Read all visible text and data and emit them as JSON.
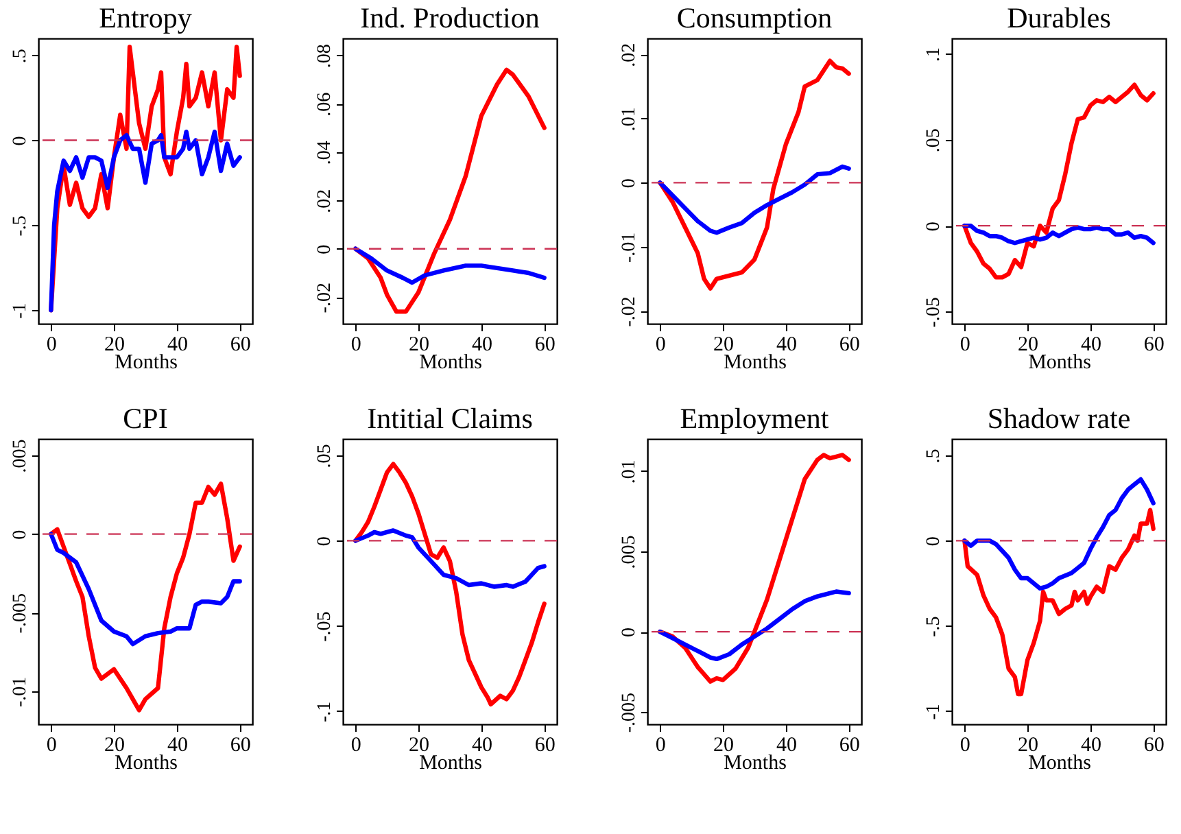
{
  "chart_data": [
    {
      "type": "line",
      "title": "Entropy",
      "xlabel": "Months",
      "xlim": [
        -4,
        64
      ],
      "xticks": [
        0,
        20,
        40,
        60
      ],
      "ylim": [
        -1.08,
        0.6
      ],
      "yticks": [
        {
          "value": -1,
          "label": "-1"
        },
        {
          "value": -0.5,
          "label": "-.5"
        },
        {
          "value": 0,
          "label": "0"
        },
        {
          "value": 0.5,
          "label": ".5"
        }
      ],
      "grid": false,
      "marker": "none",
      "line_style": "solid",
      "ref_lines": [
        {
          "axis": "y",
          "value": 0,
          "color": "#cc3355",
          "line_style": "dashed"
        }
      ],
      "series": [
        {
          "color": "#ff0000",
          "x": [
            0,
            2,
            4,
            6,
            8,
            10,
            12,
            14,
            16,
            18,
            20,
            22,
            24,
            25,
            26,
            28,
            30,
            32,
            34,
            35,
            36,
            38,
            40,
            42,
            43,
            44,
            46,
            48,
            50,
            52,
            54,
            56,
            58,
            59,
            60
          ],
          "values": [
            -1,
            -0.4,
            -0.15,
            -0.38,
            -0.25,
            -0.4,
            -0.45,
            -0.4,
            -0.2,
            -0.4,
            -0.1,
            0.15,
            -0.05,
            0.55,
            0.4,
            0.1,
            -0.05,
            0.2,
            0.3,
            0.4,
            -0.1,
            -0.2,
            0.05,
            0.25,
            0.45,
            0.2,
            0.25,
            0.4,
            0.2,
            0.4,
            0.0,
            0.3,
            0.25,
            0.55,
            0.38
          ]
        },
        {
          "color": "#0000ff",
          "x": [
            0,
            1,
            2,
            4,
            6,
            8,
            10,
            12,
            14,
            16,
            18,
            20,
            22,
            24,
            26,
            28,
            30,
            32,
            34,
            35,
            36,
            38,
            40,
            42,
            43,
            44,
            46,
            48,
            50,
            52,
            54,
            56,
            58,
            60
          ],
          "values": [
            -1,
            -0.5,
            -0.3,
            -0.12,
            -0.18,
            -0.1,
            -0.22,
            -0.1,
            -0.1,
            -0.12,
            -0.28,
            -0.1,
            0.0,
            0.03,
            -0.05,
            -0.05,
            -0.25,
            -0.02,
            0.0,
            0.03,
            -0.1,
            -0.1,
            -0.1,
            -0.05,
            0.05,
            -0.05,
            0.0,
            -0.2,
            -0.1,
            0.05,
            -0.18,
            -0.02,
            -0.15,
            -0.1
          ]
        }
      ]
    },
    {
      "type": "line",
      "title": "Ind. Production",
      "xlabel": "Months",
      "xlim": [
        -4,
        64
      ],
      "xticks": [
        0,
        20,
        40,
        60
      ],
      "ylim": [
        -0.031,
        0.087
      ],
      "yticks": [
        {
          "value": -0.02,
          "label": "-.02"
        },
        {
          "value": 0,
          "label": "0"
        },
        {
          "value": 0.02,
          "label": ".02"
        },
        {
          "value": 0.04,
          "label": ".04"
        },
        {
          "value": 0.06,
          "label": ".06"
        },
        {
          "value": 0.08,
          "label": ".08"
        }
      ],
      "grid": false,
      "marker": "none",
      "line_style": "solid",
      "ref_lines": [
        {
          "axis": "y",
          "value": 0,
          "color": "#cc3355",
          "line_style": "dashed"
        }
      ],
      "series": [
        {
          "color": "#ff0000",
          "x": [
            0,
            4,
            8,
            10,
            13,
            16,
            20,
            25,
            30,
            35,
            40,
            45,
            48,
            50,
            55,
            60
          ],
          "values": [
            0,
            -0.004,
            -0.012,
            -0.019,
            -0.026,
            -0.026,
            -0.018,
            -0.002,
            0.012,
            0.03,
            0.055,
            0.068,
            0.074,
            0.072,
            0.063,
            0.05
          ]
        },
        {
          "color": "#0000ff",
          "x": [
            0,
            5,
            10,
            15,
            18,
            22,
            28,
            35,
            40,
            45,
            50,
            55,
            60
          ],
          "values": [
            0,
            -0.004,
            -0.009,
            -0.012,
            -0.014,
            -0.011,
            -0.009,
            -0.007,
            -0.007,
            -0.008,
            -0.009,
            -0.01,
            -0.012
          ]
        }
      ]
    },
    {
      "type": "line",
      "title": "Consumption",
      "xlabel": "Months",
      "xlim": [
        -4,
        64
      ],
      "xticks": [
        0,
        20,
        40,
        60
      ],
      "ylim": [
        -0.022,
        0.0225
      ],
      "yticks": [
        {
          "value": -0.02,
          "label": "-.02"
        },
        {
          "value": -0.01,
          "label": "-.01"
        },
        {
          "value": 0,
          "label": "0"
        },
        {
          "value": 0.01,
          "label": ".01"
        },
        {
          "value": 0.02,
          "label": ".02"
        }
      ],
      "grid": false,
      "marker": "none",
      "line_style": "solid",
      "ref_lines": [
        {
          "axis": "y",
          "value": 0,
          "color": "#cc3355",
          "line_style": "dashed"
        }
      ],
      "series": [
        {
          "color": "#ff0000",
          "x": [
            0,
            4,
            8,
            12,
            14,
            16,
            18,
            22,
            26,
            30,
            34,
            36,
            40,
            44,
            46,
            50,
            54,
            56,
            58,
            60
          ],
          "values": [
            0,
            -0.003,
            -0.007,
            -0.011,
            -0.015,
            -0.0165,
            -0.015,
            -0.0145,
            -0.014,
            -0.012,
            -0.007,
            -0.001,
            0.006,
            0.011,
            0.015,
            0.016,
            0.019,
            0.018,
            0.0178,
            0.017
          ]
        },
        {
          "color": "#0000ff",
          "x": [
            0,
            4,
            8,
            12,
            16,
            18,
            22,
            26,
            30,
            34,
            38,
            42,
            46,
            50,
            54,
            58,
            60
          ],
          "values": [
            0,
            -0.002,
            -0.004,
            -0.006,
            -0.0075,
            -0.0078,
            -0.007,
            -0.0063,
            -0.0047,
            -0.0035,
            -0.0025,
            -0.0015,
            -0.0003,
            0.0013,
            0.0015,
            0.0025,
            0.0022
          ]
        }
      ]
    },
    {
      "type": "line",
      "title": "Durables",
      "xlabel": "Months",
      "xlim": [
        -4,
        64
      ],
      "xticks": [
        0,
        20,
        40,
        60
      ],
      "ylim": [
        -0.057,
        0.109
      ],
      "yticks": [
        {
          "value": -0.05,
          "label": "-.05"
        },
        {
          "value": 0,
          "label": "0"
        },
        {
          "value": 0.05,
          "label": ".05"
        },
        {
          "value": 0.1,
          "label": ".1"
        }
      ],
      "grid": false,
      "marker": "none",
      "line_style": "solid",
      "ref_lines": [
        {
          "axis": "y",
          "value": 0,
          "color": "#cc3355",
          "line_style": "dashed"
        }
      ],
      "series": [
        {
          "color": "#ff0000",
          "x": [
            0,
            2,
            4,
            6,
            8,
            10,
            12,
            14,
            16,
            18,
            20,
            22,
            24,
            26,
            28,
            30,
            32,
            34,
            36,
            38,
            40,
            42,
            44,
            46,
            48,
            50,
            52,
            54,
            56,
            58,
            60
          ],
          "values": [
            0,
            -0.01,
            -0.015,
            -0.022,
            -0.025,
            -0.03,
            -0.03,
            -0.028,
            -0.02,
            -0.024,
            -0.01,
            -0.012,
            0.0,
            -0.004,
            0.01,
            0.015,
            0.03,
            0.048,
            0.062,
            0.063,
            0.07,
            0.073,
            0.072,
            0.075,
            0.072,
            0.075,
            0.078,
            0.082,
            0.076,
            0.073,
            0.077
          ]
        },
        {
          "color": "#0000ff",
          "x": [
            0,
            2,
            4,
            6,
            8,
            10,
            12,
            14,
            16,
            18,
            20,
            22,
            24,
            26,
            28,
            30,
            32,
            34,
            36,
            38,
            40,
            42,
            44,
            46,
            48,
            50,
            52,
            54,
            56,
            58,
            60
          ],
          "values": [
            0,
            0.0,
            -0.003,
            -0.004,
            -0.006,
            -0.006,
            -0.007,
            -0.009,
            -0.01,
            -0.009,
            -0.008,
            -0.007,
            -0.008,
            -0.007,
            -0.004,
            -0.006,
            -0.004,
            -0.002,
            -0.001,
            -0.002,
            -0.002,
            -0.001,
            -0.002,
            -0.002,
            -0.005,
            -0.005,
            -0.004,
            -0.007,
            -0.006,
            -0.007,
            -0.01
          ]
        }
      ]
    },
    {
      "type": "line",
      "title": "CPI",
      "xlabel": "Months",
      "xlim": [
        -4,
        64
      ],
      "xticks": [
        0,
        20,
        40,
        60
      ],
      "ylim": [
        -0.0121,
        0.00605
      ],
      "yticks": [
        {
          "value": -0.01,
          "label": "-.01"
        },
        {
          "value": -0.005,
          "label": "-.005"
        },
        {
          "value": 0,
          "label": "0"
        },
        {
          "value": 0.005,
          "label": ".005"
        }
      ],
      "grid": false,
      "marker": "none",
      "line_style": "solid",
      "ref_lines": [
        {
          "axis": "y",
          "value": 0,
          "color": "#cc3355",
          "line_style": "dashed"
        }
      ],
      "series": [
        {
          "color": "#ff0000",
          "x": [
            0,
            2,
            4,
            8,
            10,
            12,
            14,
            16,
            20,
            24,
            26,
            28,
            30,
            34,
            36,
            38,
            40,
            42,
            44,
            46,
            48,
            50,
            52,
            54,
            56,
            58,
            60
          ],
          "values": [
            0,
            0.0003,
            -0.0008,
            -0.003,
            -0.004,
            -0.0065,
            -0.0085,
            -0.0092,
            -0.0086,
            -0.0098,
            -0.0105,
            -0.0112,
            -0.0105,
            -0.0098,
            -0.006,
            -0.004,
            -0.0025,
            -0.0015,
            0.0,
            0.002,
            0.002,
            0.003,
            0.0025,
            0.0032,
            0.001,
            -0.0017,
            -0.0008
          ]
        },
        {
          "color": "#0000ff",
          "x": [
            0,
            2,
            4,
            8,
            12,
            16,
            20,
            24,
            26,
            30,
            34,
            38,
            40,
            44,
            46,
            48,
            50,
            54,
            56,
            58,
            60
          ],
          "values": [
            0,
            -0.001,
            -0.0012,
            -0.0018,
            -0.0035,
            -0.0055,
            -0.0062,
            -0.0065,
            -0.007,
            -0.0065,
            -0.0063,
            -0.0062,
            -0.006,
            -0.006,
            -0.0045,
            -0.0043,
            -0.0043,
            -0.0044,
            -0.004,
            -0.003,
            -0.003
          ]
        }
      ]
    },
    {
      "type": "line",
      "title": "Intitial Claims",
      "xlabel": "Months",
      "xlim": [
        -4,
        64
      ],
      "xticks": [
        0,
        20,
        40,
        60
      ],
      "ylim": [
        -0.1077,
        0.0597
      ],
      "yticks": [
        {
          "value": -0.1,
          "label": "-.1"
        },
        {
          "value": -0.05,
          "label": "-.05"
        },
        {
          "value": 0,
          "label": "0"
        },
        {
          "value": 0.05,
          "label": ".05"
        }
      ],
      "grid": false,
      "marker": "none",
      "line_style": "solid",
      "ref_lines": [
        {
          "axis": "y",
          "value": 0,
          "color": "#cc3355",
          "line_style": "dashed"
        }
      ],
      "series": [
        {
          "color": "#ff0000",
          "x": [
            0,
            2,
            4,
            6,
            8,
            10,
            12,
            14,
            16,
            18,
            20,
            22,
            24,
            26,
            28,
            30,
            32,
            34,
            36,
            38,
            40,
            42,
            43,
            46,
            48,
            50,
            52,
            54,
            56,
            58,
            60
          ],
          "values": [
            0,
            0.005,
            0.011,
            0.02,
            0.03,
            0.04,
            0.045,
            0.04,
            0.034,
            0.026,
            0.016,
            0.004,
            -0.008,
            -0.01,
            -0.004,
            -0.012,
            -0.03,
            -0.055,
            -0.07,
            -0.078,
            -0.086,
            -0.092,
            -0.096,
            -0.091,
            -0.093,
            -0.088,
            -0.08,
            -0.07,
            -0.06,
            -0.048,
            -0.037
          ]
        },
        {
          "color": "#0000ff",
          "x": [
            0,
            4,
            6,
            8,
            12,
            16,
            18,
            20,
            24,
            28,
            32,
            36,
            40,
            44,
            48,
            50,
            54,
            56,
            58,
            60
          ],
          "values": [
            0,
            0.003,
            0.005,
            0.004,
            0.006,
            0.003,
            0.002,
            -0.004,
            -0.012,
            -0.02,
            -0.022,
            -0.026,
            -0.025,
            -0.027,
            -0.026,
            -0.027,
            -0.024,
            -0.02,
            -0.016,
            -0.015
          ]
        }
      ]
    },
    {
      "type": "line",
      "title": "Employment",
      "xlabel": "Months",
      "xlim": [
        -4,
        64
      ],
      "xticks": [
        0,
        20,
        40,
        60
      ],
      "ylim": [
        -0.00576,
        0.012
      ],
      "yticks": [
        {
          "value": -0.005,
          "label": "-.005"
        },
        {
          "value": 0,
          "label": "0"
        },
        {
          "value": 0.005,
          "label": ".005"
        },
        {
          "value": 0.01,
          "label": ".01"
        }
      ],
      "grid": false,
      "marker": "none",
      "line_style": "solid",
      "ref_lines": [
        {
          "axis": "y",
          "value": 0,
          "color": "#cc3355",
          "line_style": "dashed"
        }
      ],
      "series": [
        {
          "color": "#ff0000",
          "x": [
            0,
            4,
            8,
            12,
            16,
            18,
            20,
            24,
            28,
            30,
            34,
            38,
            42,
            46,
            50,
            52,
            54,
            56,
            58,
            60
          ],
          "values": [
            0,
            -0.0003,
            -0.001,
            -0.0022,
            -0.0031,
            -0.0029,
            -0.003,
            -0.0023,
            -0.001,
            0.0,
            0.002,
            0.0045,
            0.007,
            0.0095,
            0.0107,
            0.011,
            0.0108,
            0.0109,
            0.011,
            0.0107
          ]
        },
        {
          "color": "#0000ff",
          "x": [
            0,
            4,
            8,
            12,
            16,
            18,
            22,
            26,
            30,
            34,
            38,
            42,
            46,
            50,
            54,
            56,
            60
          ],
          "values": [
            0,
            -0.0004,
            -0.0008,
            -0.0012,
            -0.0016,
            -0.0017,
            -0.0014,
            -0.0008,
            -0.0003,
            0.0002,
            0.0008,
            0.0014,
            0.0019,
            0.0022,
            0.0024,
            0.0025,
            0.0024
          ]
        }
      ]
    },
    {
      "type": "line",
      "title": "Shadow rate",
      "xlabel": "Months",
      "xlim": [
        -4,
        64
      ],
      "xticks": [
        0,
        20,
        40,
        60
      ],
      "ylim": [
        -1.077,
        0.597
      ],
      "yticks": [
        {
          "value": -1,
          "label": "-1"
        },
        {
          "value": -0.5,
          "label": "-.5"
        },
        {
          "value": 0,
          "label": "0"
        },
        {
          "value": 0.5,
          "label": ".5"
        }
      ],
      "grid": false,
      "marker": "none",
      "line_style": "solid",
      "ref_lines": [
        {
          "axis": "y",
          "value": 0,
          "color": "#cc3355",
          "line_style": "dashed"
        }
      ],
      "series": [
        {
          "color": "#ff0000",
          "x": [
            0,
            1,
            4,
            6,
            8,
            10,
            12,
            14,
            16,
            17,
            18,
            20,
            22,
            24,
            25,
            26,
            28,
            30,
            32,
            34,
            35,
            36,
            38,
            39,
            40,
            42,
            44,
            46,
            48,
            50,
            52,
            54,
            55,
            56,
            58,
            59,
            60
          ],
          "values": [
            0,
            -0.15,
            -0.2,
            -0.32,
            -0.4,
            -0.45,
            -0.55,
            -0.75,
            -0.8,
            -0.9,
            -0.9,
            -0.7,
            -0.6,
            -0.47,
            -0.3,
            -0.35,
            -0.35,
            -0.43,
            -0.4,
            -0.38,
            -0.3,
            -0.35,
            -0.3,
            -0.37,
            -0.33,
            -0.27,
            -0.3,
            -0.15,
            -0.17,
            -0.1,
            -0.05,
            0.03,
            0.0,
            0.1,
            0.1,
            0.18,
            0.07
          ]
        },
        {
          "color": "#0000ff",
          "x": [
            0,
            2,
            4,
            6,
            8,
            10,
            12,
            14,
            16,
            18,
            20,
            22,
            24,
            26,
            28,
            30,
            34,
            36,
            38,
            40,
            42,
            44,
            46,
            48,
            50,
            52,
            54,
            56,
            58,
            60
          ],
          "values": [
            0,
            -0.03,
            0.0,
            0.0,
            0.0,
            -0.02,
            -0.06,
            -0.1,
            -0.17,
            -0.22,
            -0.22,
            -0.25,
            -0.28,
            -0.27,
            -0.25,
            -0.22,
            -0.19,
            -0.16,
            -0.13,
            -0.05,
            0.02,
            0.08,
            0.15,
            0.18,
            0.25,
            0.3,
            0.33,
            0.36,
            0.3,
            0.22
          ]
        }
      ]
    }
  ]
}
